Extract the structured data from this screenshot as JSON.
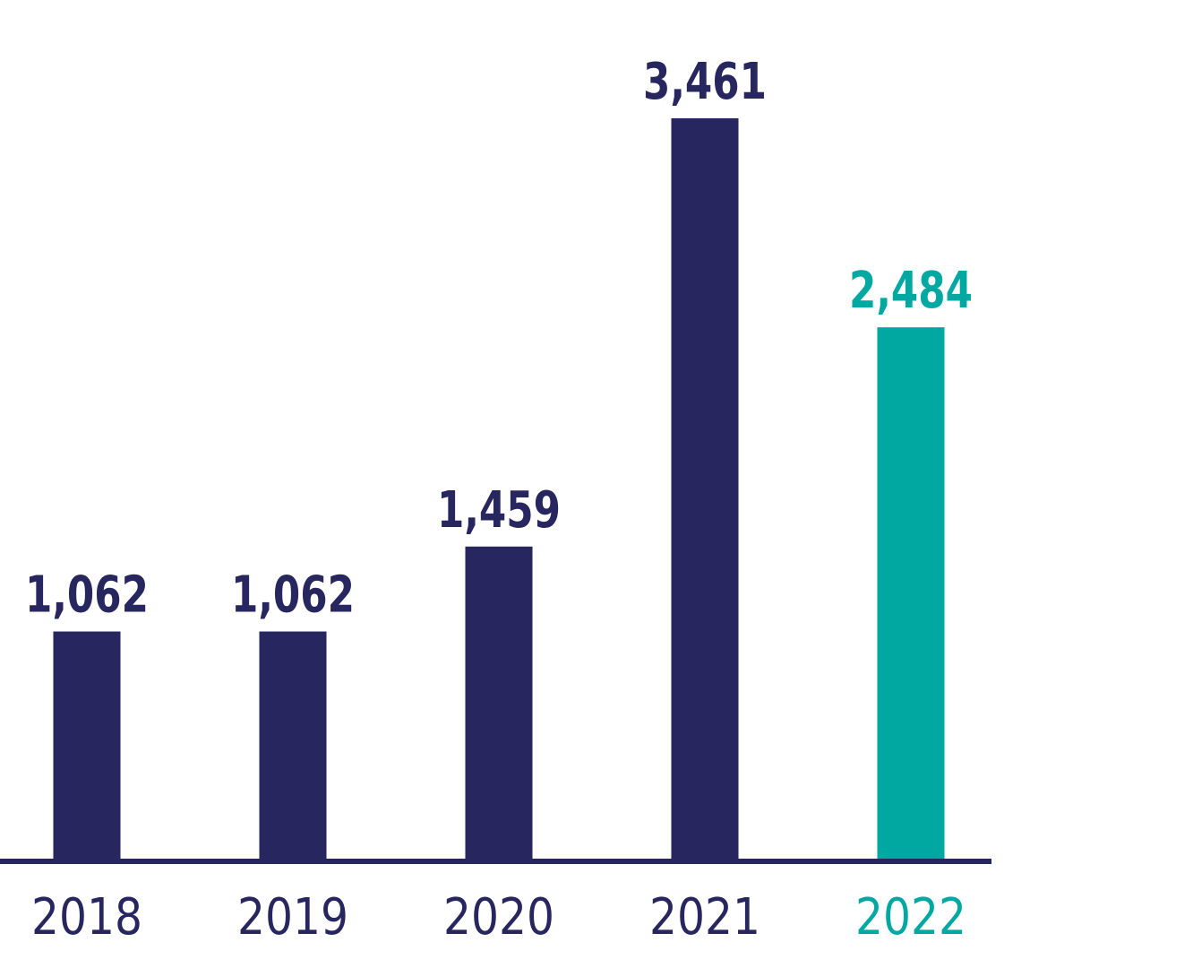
{
  "colors": {
    "primary": "#27265e",
    "highlight": "#00a8a2",
    "background": "#ffffff"
  },
  "chart_data": {
    "type": "bar",
    "categories": [
      "2018",
      "2019",
      "2020",
      "2021",
      "2022"
    ],
    "values": [
      1062,
      1062,
      1459,
      3461,
      2484
    ],
    "value_labels": [
      "1,062",
      "1,062",
      "1,459",
      "3,461",
      "2,484"
    ],
    "highlighted_category": "2022",
    "title": "",
    "xlabel": "",
    "ylabel": "",
    "ylim": [
      0,
      3461
    ],
    "grid": false,
    "legend": "none"
  }
}
